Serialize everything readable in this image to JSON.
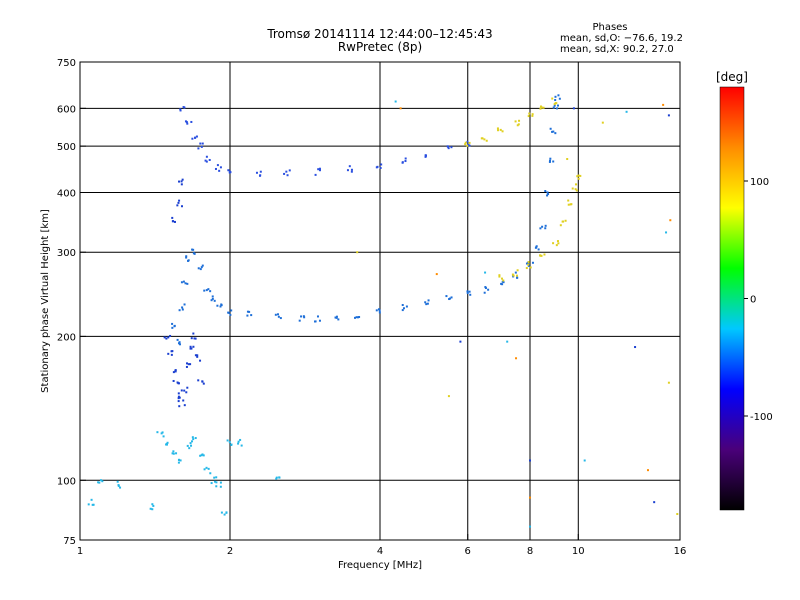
{
  "title": {
    "line1": "Tromsø 20141114 12:44:00–12:45:43",
    "line2": "RwPretec (8p)"
  },
  "phase_stats": {
    "heading": "Phases",
    "line_o": "mean, sd,O: −76.6, 19.2",
    "line_x": "mean, sd,X:  90.2, 27.0"
  },
  "chart_data": {
    "type": "scatter",
    "xlabel": "Frequency [MHz]",
    "ylabel": "Stationary phase Virtual Height [km]",
    "x_scale": "log",
    "y_scale": "log",
    "xlim": [
      1,
      16
    ],
    "ylim": [
      75,
      750
    ],
    "x_ticks": [
      1,
      2,
      4,
      6,
      8,
      10,
      16
    ],
    "y_ticks": [
      75,
      100,
      200,
      300,
      400,
      500,
      600,
      750
    ],
    "grid": true,
    "colorbar": {
      "label": "[deg]",
      "range": [
        -180,
        180
      ],
      "ticks": [
        100,
        0,
        -100
      ],
      "colormap": [
        "#000000",
        "#4a007a",
        "#0000ff",
        "#00c8ff",
        "#00ff00",
        "#ffff00",
        "#ff8c00",
        "#ff0000"
      ]
    },
    "series": [
      {
        "color": "#1e6fd8",
        "points": [
          [
            1.55,
            210
          ],
          [
            1.58,
            195
          ],
          [
            1.6,
            230
          ],
          [
            1.62,
            260
          ],
          [
            1.65,
            290
          ],
          [
            1.7,
            300
          ],
          [
            1.75,
            280
          ],
          [
            1.8,
            250
          ],
          [
            1.85,
            240
          ],
          [
            1.9,
            230
          ],
          [
            2.0,
            225
          ],
          [
            2.2,
            222
          ],
          [
            2.5,
            220
          ],
          [
            2.8,
            218
          ],
          [
            3.0,
            218
          ],
          [
            3.3,
            220
          ],
          [
            3.6,
            222
          ],
          [
            4.0,
            225
          ],
          [
            4.5,
            230
          ],
          [
            5.0,
            235
          ],
          [
            5.5,
            240
          ],
          [
            6.0,
            245
          ],
          [
            6.5,
            250
          ],
          [
            7.0,
            258
          ],
          [
            7.5,
            268
          ],
          [
            8.0,
            285
          ],
          [
            8.3,
            305
          ],
          [
            8.5,
            340
          ],
          [
            8.7,
            400
          ],
          [
            8.8,
            470
          ],
          [
            8.9,
            540
          ],
          [
            9.0,
            600
          ],
          [
            9.1,
            630
          ]
        ]
      },
      {
        "color": "#2a4fe0",
        "points": [
          [
            1.6,
            600
          ],
          [
            1.65,
            560
          ],
          [
            1.7,
            520
          ],
          [
            1.75,
            500
          ],
          [
            1.8,
            470
          ],
          [
            1.9,
            450
          ],
          [
            2.0,
            445
          ],
          [
            2.3,
            440
          ],
          [
            2.6,
            440
          ],
          [
            3.0,
            442
          ],
          [
            3.5,
            448
          ],
          [
            4.0,
            455
          ],
          [
            4.5,
            465
          ],
          [
            5.0,
            480
          ],
          [
            5.5,
            495
          ],
          [
            6.0,
            505
          ]
        ]
      },
      {
        "color": "#e0d020",
        "points": [
          [
            6.0,
            505
          ],
          [
            6.5,
            520
          ],
          [
            7.0,
            540
          ],
          [
            7.5,
            560
          ],
          [
            8.0,
            580
          ],
          [
            8.5,
            600
          ],
          [
            9.0,
            620
          ],
          [
            7.0,
            265
          ],
          [
            7.5,
            272
          ],
          [
            8.0,
            282
          ],
          [
            8.5,
            295
          ],
          [
            9.0,
            315
          ],
          [
            9.3,
            345
          ],
          [
            9.6,
            380
          ],
          [
            9.8,
            410
          ],
          [
            10.0,
            430
          ]
        ]
      },
      {
        "color": "#25b8e8",
        "points": [
          [
            1.45,
            125
          ],
          [
            1.5,
            120
          ],
          [
            1.55,
            115
          ],
          [
            1.6,
            110
          ],
          [
            1.65,
            118
          ],
          [
            1.7,
            122
          ],
          [
            1.75,
            112
          ],
          [
            1.8,
            105
          ],
          [
            1.85,
            100
          ],
          [
            1.9,
            98
          ],
          [
            2.0,
            120
          ],
          [
            2.1,
            120
          ],
          [
            1.1,
            100
          ],
          [
            1.2,
            98
          ],
          [
            1.05,
            90
          ],
          [
            1.4,
            88
          ],
          [
            1.95,
            85
          ],
          [
            2.5,
            100
          ]
        ]
      },
      {
        "color": "#1a3fd0",
        "points": [
          [
            1.5,
            200
          ],
          [
            1.52,
            185
          ],
          [
            1.54,
            170
          ],
          [
            1.56,
            160
          ],
          [
            1.58,
            150
          ],
          [
            1.6,
            145
          ],
          [
            1.62,
            155
          ],
          [
            1.65,
            175
          ],
          [
            1.68,
            190
          ],
          [
            1.7,
            200
          ],
          [
            1.72,
            180
          ],
          [
            1.75,
            160
          ],
          [
            1.55,
            350
          ],
          [
            1.58,
            380
          ],
          [
            1.6,
            420
          ]
        ]
      }
    ],
    "scatter_outliers": [
      [
        4.3,
        620
      ],
      [
        4.4,
        600
      ],
      [
        9.8,
        600
      ],
      [
        11.2,
        560
      ],
      [
        12.5,
        590
      ],
      [
        14.8,
        610
      ],
      [
        15.2,
        580
      ],
      [
        9.5,
        470
      ],
      [
        15.0,
        330
      ],
      [
        15.3,
        350
      ],
      [
        5.8,
        195
      ],
      [
        5.5,
        150
      ],
      [
        7.2,
        195
      ],
      [
        7.5,
        180
      ],
      [
        13.0,
        190
      ],
      [
        15.2,
        160
      ],
      [
        10.3,
        110
      ],
      [
        13.8,
        105
      ],
      [
        14.2,
        90
      ],
      [
        15.8,
        85
      ],
      [
        8.0,
        80
      ],
      [
        8.0,
        92
      ],
      [
        8.0,
        110
      ],
      [
        3.6,
        300
      ],
      [
        6.5,
        272
      ],
      [
        5.2,
        270
      ]
    ]
  }
}
